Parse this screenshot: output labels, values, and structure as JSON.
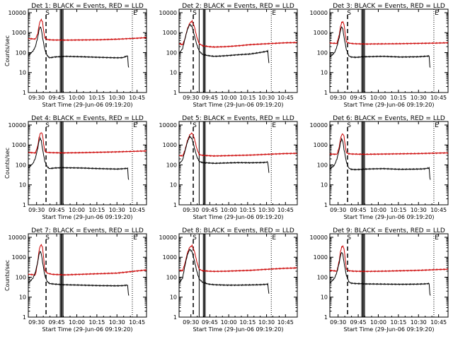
{
  "figure": {
    "background": "#ffffff",
    "axis_color": "#000000",
    "events_color": "#000000",
    "lld_color": "#cc0000"
  },
  "chart_data": [
    {
      "type": "line",
      "title": "Det 1: BLACK = Events, RED = LLD",
      "ylabel": "Counts/sec",
      "xlabel": "Start Time (29-Jun-06 09:19:20)",
      "yscale": "log",
      "ylim": [
        1,
        15000
      ],
      "yticks": [
        "1",
        "10",
        "100",
        "1000",
        "10000"
      ],
      "xticklabels": [
        "09:30",
        "09:45",
        "10:00",
        "10:15",
        "10:30",
        "10:45"
      ],
      "markers": [
        "S",
        "E"
      ],
      "series": [
        {
          "name": "Events",
          "color": "#000000",
          "x": [
            0,
            4,
            6,
            8,
            9,
            10,
            11,
            12,
            14,
            16,
            18,
            22,
            30,
            45,
            60,
            75,
            80,
            84,
            84.6,
            85
          ],
          "y": [
            70,
            120,
            200,
            600,
            1300,
            2000,
            1500,
            600,
            140,
            70,
            55,
            60,
            65,
            62,
            58,
            55,
            56,
            70,
            20,
            18
          ]
        },
        {
          "name": "LLD",
          "color": "#cc0000",
          "x": [
            0,
            6,
            8,
            9,
            10,
            11,
            12,
            13,
            14,
            16,
            20,
            30,
            45,
            60,
            75,
            90,
            100
          ],
          "y": [
            500,
            480,
            900,
            2200,
            3800,
            4500,
            3500,
            1200,
            550,
            450,
            430,
            420,
            430,
            440,
            470,
            520,
            560
          ]
        }
      ]
    },
    {
      "type": "line",
      "title": "Det 2: BLACK = Events, RED = LLD",
      "ylabel": "",
      "xlabel": "Start Time (29-Jun-06 09:19:20)",
      "yscale": "log",
      "ylim": [
        1,
        15000
      ],
      "yticks": [
        "1",
        "10",
        "100",
        "1000",
        "10000"
      ],
      "xticklabels": [
        "09:30",
        "09:45",
        "10:00",
        "10:15",
        "10:30",
        "10:45"
      ],
      "markers": [
        "S",
        "E"
      ],
      "series": [
        {
          "name": "Events",
          "color": "#000000",
          "x": [
            0,
            3,
            5,
            7,
            9,
            11,
            13,
            15,
            17,
            20,
            25,
            30,
            40,
            50,
            60,
            68,
            72,
            75,
            76
          ],
          "y": [
            90,
            160,
            500,
            1400,
            2600,
            2000,
            700,
            250,
            120,
            80,
            70,
            65,
            70,
            78,
            85,
            100,
            110,
            120,
            30
          ]
        },
        {
          "name": "LLD",
          "color": "#cc0000",
          "x": [
            0,
            3,
            5,
            7,
            9,
            11,
            13,
            15,
            17,
            20,
            25,
            30,
            40,
            50,
            60,
            70,
            80,
            90,
            100
          ],
          "y": [
            280,
            250,
            500,
            1500,
            3000,
            3800,
            2000,
            600,
            280,
            220,
            200,
            190,
            200,
            220,
            250,
            270,
            290,
            310,
            320
          ]
        }
      ]
    },
    {
      "type": "line",
      "title": "Det 3: BLACK = Events, RED = LLD",
      "ylabel": "",
      "xlabel": "Start Time (29-Jun-06 09:19:20)",
      "yscale": "log",
      "ylim": [
        1,
        15000
      ],
      "yticks": [
        "1",
        "10",
        "100",
        "1000",
        "10000"
      ],
      "xticklabels": [
        "09:30",
        "09:45",
        "10:00",
        "10:15",
        "10:30",
        "10:45"
      ],
      "markers": [
        "S",
        "E"
      ],
      "series": [
        {
          "name": "Events",
          "color": "#000000",
          "x": [
            0,
            4,
            6,
            8,
            9,
            10,
            11,
            12,
            14,
            16,
            18,
            22,
            30,
            45,
            60,
            75,
            80,
            84,
            84.6,
            85
          ],
          "y": [
            60,
            100,
            200,
            600,
            1300,
            2000,
            1500,
            600,
            140,
            70,
            60,
            58,
            62,
            65,
            60,
            62,
            65,
            68,
            20,
            18
          ]
        },
        {
          "name": "LLD",
          "color": "#cc0000",
          "x": [
            0,
            6,
            8,
            9,
            10,
            11,
            12,
            13,
            14,
            16,
            20,
            30,
            45,
            60,
            75,
            90,
            100
          ],
          "y": [
            300,
            290,
            800,
            2000,
            3200,
            3500,
            2600,
            900,
            350,
            300,
            280,
            270,
            275,
            280,
            290,
            300,
            310
          ]
        }
      ]
    },
    {
      "type": "line",
      "title": "Det 4: BLACK = Events, RED = LLD",
      "ylabel": "Counts/sec",
      "xlabel": "Start Time (29-Jun-06 09:19:20)",
      "yscale": "log",
      "ylim": [
        1,
        15000
      ],
      "yticks": [
        "1",
        "10",
        "100",
        "1000",
        "10000"
      ],
      "xticklabels": [
        "09:30",
        "09:45",
        "10:00",
        "10:15",
        "10:30",
        "10:45"
      ],
      "markers": [
        "S",
        "E"
      ],
      "series": [
        {
          "name": "Events",
          "color": "#000000",
          "x": [
            0,
            4,
            6,
            8,
            9,
            10,
            11,
            12,
            14,
            16,
            18,
            22,
            30,
            45,
            60,
            75,
            80,
            84,
            84.6,
            85
          ],
          "y": [
            70,
            120,
            220,
            700,
            1500,
            2200,
            1600,
            650,
            150,
            80,
            65,
            70,
            72,
            70,
            65,
            62,
            64,
            68,
            22,
            18
          ]
        },
        {
          "name": "LLD",
          "color": "#cc0000",
          "x": [
            0,
            6,
            8,
            9,
            10,
            11,
            12,
            13,
            14,
            16,
            20,
            30,
            45,
            60,
            75,
            90,
            100
          ],
          "y": [
            420,
            400,
            900,
            2200,
            3600,
            4200,
            3300,
            1100,
            500,
            420,
            410,
            400,
            410,
            430,
            450,
            480,
            500
          ]
        }
      ]
    },
    {
      "type": "line",
      "title": "Det 5: BLACK = Events, RED = LLD",
      "ylabel": "",
      "xlabel": "Start Time (29-Jun-06 09:19:20)",
      "yscale": "log",
      "ylim": [
        1,
        15000
      ],
      "yticks": [
        "1",
        "10",
        "100",
        "1000",
        "10000"
      ],
      "xticklabels": [
        "09:30",
        "09:45",
        "10:00",
        "10:15",
        "10:30",
        "10:45"
      ],
      "markers": [
        "S",
        "E"
      ],
      "series": [
        {
          "name": "Events",
          "color": "#000000",
          "x": [
            0,
            3,
            5,
            7,
            9,
            11,
            13,
            15,
            17,
            20,
            25,
            30,
            40,
            50,
            60,
            68,
            72,
            75,
            76
          ],
          "y": [
            110,
            180,
            500,
            1400,
            2700,
            2000,
            700,
            260,
            150,
            130,
            125,
            120,
            125,
            130,
            128,
            130,
            132,
            140,
            40
          ]
        },
        {
          "name": "LLD",
          "color": "#cc0000",
          "x": [
            0,
            3,
            5,
            7,
            9,
            11,
            13,
            15,
            17,
            20,
            25,
            30,
            40,
            50,
            60,
            70,
            80,
            90,
            100
          ],
          "y": [
            300,
            280,
            550,
            1600,
            3200,
            4000,
            2100,
            650,
            330,
            300,
            290,
            280,
            290,
            300,
            310,
            330,
            350,
            370,
            380
          ]
        }
      ]
    },
    {
      "type": "line",
      "title": "Det 6: BLACK = Events, RED = LLD",
      "ylabel": "",
      "xlabel": "Start Time (29-Jun-06 09:19:20)",
      "yscale": "log",
      "ylim": [
        1,
        15000
      ],
      "yticks": [
        "1",
        "10",
        "100",
        "1000",
        "10000"
      ],
      "xticklabels": [
        "09:30",
        "09:45",
        "10:00",
        "10:15",
        "10:30",
        "10:45"
      ],
      "markers": [
        "S",
        "E"
      ],
      "series": [
        {
          "name": "Events",
          "color": "#000000",
          "x": [
            0,
            4,
            6,
            8,
            9,
            10,
            11,
            12,
            14,
            16,
            18,
            22,
            30,
            45,
            60,
            75,
            80,
            84,
            84.6,
            85
          ],
          "y": [
            60,
            100,
            200,
            600,
            1300,
            2000,
            1500,
            600,
            140,
            70,
            60,
            58,
            62,
            65,
            60,
            62,
            64,
            70,
            22,
            18
          ]
        },
        {
          "name": "LLD",
          "color": "#cc0000",
          "x": [
            0,
            6,
            8,
            9,
            10,
            11,
            12,
            13,
            14,
            16,
            20,
            30,
            45,
            60,
            75,
            90,
            100
          ],
          "y": [
            350,
            340,
            800,
            2000,
            3200,
            3600,
            2700,
            950,
            400,
            360,
            350,
            340,
            350,
            360,
            370,
            390,
            400
          ]
        }
      ]
    },
    {
      "type": "line",
      "title": "Det 7: BLACK = Events, RED = LLD",
      "ylabel": "Counts/sec",
      "xlabel": "Start Time (29-Jun-06 09:19:20)",
      "yscale": "log",
      "ylim": [
        1,
        15000
      ],
      "yticks": [
        "1",
        "10",
        "100",
        "1000",
        "10000"
      ],
      "xticklabels": [
        "09:30",
        "09:45",
        "10:00",
        "10:15",
        "10:30",
        "10:45"
      ],
      "markers": [
        "S",
        "E"
      ],
      "series": [
        {
          "name": "Events",
          "color": "#000000",
          "x": [
            0,
            4,
            6,
            8,
            9,
            10,
            11,
            12,
            14,
            16,
            18,
            22,
            30,
            45,
            60,
            75,
            80,
            84,
            84.6,
            85
          ],
          "y": [
            50,
            90,
            180,
            600,
            1300,
            2000,
            1500,
            600,
            120,
            60,
            48,
            45,
            42,
            40,
            38,
            37,
            38,
            40,
            15,
            12
          ]
        },
        {
          "name": "LLD",
          "color": "#cc0000",
          "x": [
            0,
            6,
            8,
            9,
            10,
            11,
            12,
            13,
            14,
            16,
            20,
            30,
            45,
            60,
            75,
            90,
            100
          ],
          "y": [
            140,
            130,
            600,
            2000,
            3600,
            4200,
            3200,
            900,
            220,
            160,
            140,
            130,
            140,
            150,
            160,
            200,
            230
          ]
        }
      ]
    },
    {
      "type": "line",
      "title": "Det 8: BLACK = Events, RED = LLD",
      "ylabel": "",
      "xlabel": "Start Time (29-Jun-06 09:19:20)",
      "yscale": "log",
      "ylim": [
        1,
        15000
      ],
      "yticks": [
        "1",
        "10",
        "100",
        "1000",
        "10000"
      ],
      "xticklabels": [
        "09:30",
        "09:45",
        "10:00",
        "10:15",
        "10:30",
        "10:45"
      ],
      "markers": [
        "S",
        "E"
      ],
      "series": [
        {
          "name": "Events",
          "color": "#000000",
          "x": [
            0,
            3,
            5,
            7,
            9,
            11,
            13,
            15,
            17,
            20,
            25,
            30,
            40,
            50,
            60,
            68,
            72,
            75,
            76
          ],
          "y": [
            50,
            90,
            400,
            1300,
            2500,
            1900,
            650,
            200,
            80,
            55,
            45,
            42,
            40,
            40,
            41,
            42,
            43,
            45,
            15
          ]
        },
        {
          "name": "LLD",
          "color": "#cc0000",
          "x": [
            0,
            3,
            5,
            7,
            9,
            11,
            13,
            15,
            17,
            20,
            25,
            30,
            40,
            50,
            60,
            70,
            80,
            90,
            100
          ],
          "y": [
            230,
            210,
            500,
            1600,
            3200,
            3800,
            2000,
            600,
            250,
            210,
            200,
            195,
            200,
            210,
            220,
            240,
            260,
            280,
            290
          ]
        }
      ]
    },
    {
      "type": "line",
      "title": "Det 9: BLACK = Events, RED = LLD",
      "ylabel": "",
      "xlabel": "Start Time (29-Jun-06 09:19:20)",
      "yscale": "log",
      "ylim": [
        1,
        15000
      ],
      "yticks": [
        "1",
        "10",
        "100",
        "1000",
        "10000"
      ],
      "xticklabels": [
        "09:30",
        "09:45",
        "10:00",
        "10:15",
        "10:30",
        "10:45"
      ],
      "markers": [
        "S",
        "E"
      ],
      "series": [
        {
          "name": "Events",
          "color": "#000000",
          "x": [
            0,
            4,
            6,
            8,
            9,
            10,
            11,
            12,
            14,
            16,
            18,
            22,
            30,
            45,
            60,
            75,
            80,
            84,
            84.6,
            85
          ],
          "y": [
            50,
            90,
            180,
            550,
            1200,
            1800,
            1400,
            550,
            120,
            60,
            50,
            48,
            46,
            45,
            44,
            45,
            46,
            48,
            15,
            12
          ]
        },
        {
          "name": "LLD",
          "color": "#cc0000",
          "x": [
            0,
            6,
            8,
            9,
            10,
            11,
            12,
            13,
            14,
            16,
            20,
            30,
            45,
            60,
            75,
            90,
            100
          ],
          "y": [
            220,
            200,
            700,
            1900,
            3200,
            3600,
            2700,
            850,
            260,
            210,
            200,
            195,
            200,
            210,
            220,
            240,
            250
          ]
        }
      ]
    }
  ]
}
